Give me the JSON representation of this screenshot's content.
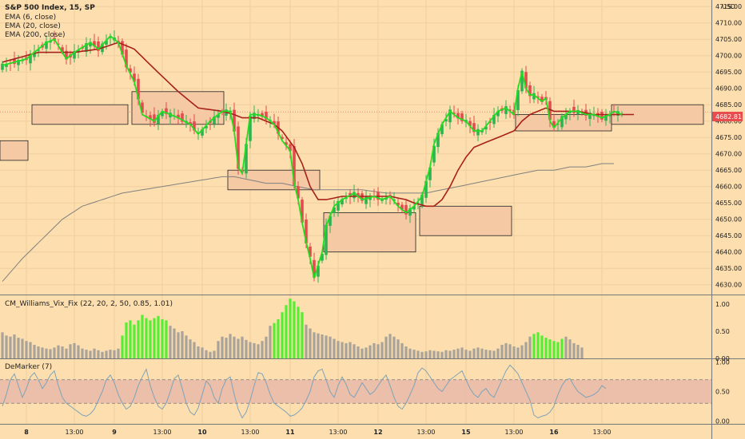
{
  "chart_data": {
    "type": "candlestick",
    "main": {
      "title": "S&P 500 Index, 15, SP",
      "indicators": [
        "EMA (6, close)",
        "EMA (20, close)",
        "EMA (200, close)"
      ],
      "currency": "USD",
      "y_ticks": [
        4630,
        4635,
        4640,
        4645,
        4650,
        4655,
        4660,
        4665,
        4670,
        4675,
        4680,
        4685,
        4690,
        4695,
        4700,
        4705,
        4710,
        4715
      ],
      "y_tick_labels": [
        "4630.00",
        "4635.00",
        "4640.00",
        "4645.00",
        "4650.00",
        "4655.00",
        "4660.00",
        "4665.00",
        "4670.00",
        "4675.00",
        "4680.00",
        "4685.00",
        "4690.00",
        "4695.00",
        "4700.00",
        "4705.00",
        "4710.00",
        "4715.00"
      ],
      "ylim": [
        4627,
        4717
      ],
      "last_price": 4682.81,
      "last_price_label": "4682.81",
      "close_path": [
        [
          0,
          4697
        ],
        [
          6,
          4699
        ],
        [
          11,
          4704
        ],
        [
          13,
          4705
        ],
        [
          16,
          4699
        ],
        [
          18,
          4701
        ],
        [
          22,
          4704
        ],
        [
          24,
          4702
        ],
        [
          27,
          4706
        ],
        [
          29,
          4704
        ],
        [
          31,
          4697
        ],
        [
          33,
          4692
        ],
        [
          35,
          4682
        ],
        [
          38,
          4680
        ],
        [
          40,
          4683
        ],
        [
          44,
          4681
        ],
        [
          47,
          4679
        ],
        [
          49,
          4676
        ],
        [
          52,
          4680
        ],
        [
          55,
          4683
        ],
        [
          57,
          4683
        ],
        [
          58,
          4677
        ],
        [
          59,
          4666
        ],
        [
          60,
          4664
        ],
        [
          62,
          4682
        ],
        [
          64,
          4682
        ],
        [
          66,
          4681
        ],
        [
          68,
          4679
        ],
        [
          70,
          4674
        ],
        [
          72,
          4671
        ],
        [
          73,
          4661
        ],
        [
          74,
          4656
        ],
        [
          75,
          4649
        ],
        [
          76,
          4643
        ],
        [
          77,
          4638
        ],
        [
          78,
          4632
        ],
        [
          79,
          4636
        ],
        [
          80,
          4640
        ],
        [
          81,
          4648
        ],
        [
          83,
          4654
        ],
        [
          85,
          4656
        ],
        [
          88,
          4658
        ],
        [
          90,
          4656
        ],
        [
          93,
          4657
        ],
        [
          95,
          4656
        ],
        [
          97,
          4657
        ],
        [
          99,
          4654
        ],
        [
          101,
          4652
        ],
        [
          103,
          4654
        ],
        [
          105,
          4657
        ],
        [
          107,
          4666
        ],
        [
          108,
          4673
        ],
        [
          110,
          4679
        ],
        [
          112,
          4683
        ],
        [
          114,
          4681
        ],
        [
          116,
          4680
        ],
        [
          118,
          4677
        ],
        [
          120,
          4677
        ],
        [
          122,
          4680
        ],
        [
          124,
          4683
        ],
        [
          126,
          4684
        ],
        [
          128,
          4682
        ],
        [
          129,
          4690
        ],
        [
          130,
          4695
        ],
        [
          131,
          4690
        ],
        [
          132,
          4688
        ],
        [
          133,
          4688
        ],
        [
          135,
          4686
        ],
        [
          136,
          4687
        ],
        [
          137,
          4680
        ],
        [
          138,
          4678
        ],
        [
          140,
          4681
        ],
        [
          142,
          4683
        ],
        [
          144,
          4683
        ],
        [
          146,
          4682
        ],
        [
          148,
          4682
        ],
        [
          150,
          4681
        ],
        [
          152,
          4682
        ],
        [
          153,
          4683
        ],
        [
          155,
          4682
        ]
      ],
      "ema20_path": [
        [
          0,
          4698
        ],
        [
          9,
          4701
        ],
        [
          13,
          4701
        ],
        [
          18,
          4701
        ],
        [
          24,
          4702
        ],
        [
          29,
          4704
        ],
        [
          33,
          4702
        ],
        [
          38,
          4696
        ],
        [
          44,
          4689
        ],
        [
          49,
          4684
        ],
        [
          55,
          4683
        ],
        [
          58,
          4682
        ],
        [
          60,
          4681
        ],
        [
          64,
          4681
        ],
        [
          68,
          4679
        ],
        [
          70,
          4677
        ],
        [
          73,
          4672
        ],
        [
          75,
          4667
        ],
        [
          77,
          4660
        ],
        [
          79,
          4656
        ],
        [
          81,
          4656
        ],
        [
          85,
          4657
        ],
        [
          88,
          4657
        ],
        [
          93,
          4657
        ],
        [
          97,
          4657
        ],
        [
          101,
          4656
        ],
        [
          103,
          4655
        ],
        [
          106,
          4654
        ],
        [
          108,
          4654
        ],
        [
          110,
          4656
        ],
        [
          112,
          4660
        ],
        [
          114,
          4665
        ],
        [
          116,
          4669
        ],
        [
          118,
          4672
        ],
        [
          120,
          4673
        ],
        [
          122,
          4674
        ],
        [
          124,
          4675
        ],
        [
          126,
          4676
        ],
        [
          128,
          4677
        ],
        [
          130,
          4680
        ],
        [
          132,
          4682
        ],
        [
          134,
          4683
        ],
        [
          136,
          4684
        ],
        [
          138,
          4683
        ],
        [
          140,
          4683
        ],
        [
          144,
          4683
        ],
        [
          148,
          4682
        ],
        [
          152,
          4682
        ],
        [
          155,
          4682
        ],
        [
          158,
          4682
        ]
      ],
      "ema200_path": [
        [
          0,
          4631
        ],
        [
          5,
          4638
        ],
        [
          10,
          4644
        ],
        [
          15,
          4650
        ],
        [
          20,
          4654
        ],
        [
          25,
          4656
        ],
        [
          30,
          4658
        ],
        [
          35,
          4659
        ],
        [
          40,
          4660
        ],
        [
          45,
          4661
        ],
        [
          50,
          4662
        ],
        [
          55,
          4663
        ],
        [
          58,
          4663
        ],
        [
          62,
          4662
        ],
        [
          66,
          4661
        ],
        [
          70,
          4661
        ],
        [
          74,
          4660
        ],
        [
          78,
          4659
        ],
        [
          82,
          4659
        ],
        [
          86,
          4659
        ],
        [
          90,
          4659
        ],
        [
          96,
          4658
        ],
        [
          102,
          4658
        ],
        [
          106,
          4658
        ],
        [
          110,
          4659
        ],
        [
          114,
          4660
        ],
        [
          118,
          4661
        ],
        [
          122,
          4662
        ],
        [
          126,
          4663
        ],
        [
          130,
          4664
        ],
        [
          134,
          4665
        ],
        [
          138,
          4665
        ],
        [
          142,
          4666
        ],
        [
          146,
          4666
        ],
        [
          150,
          4667
        ],
        [
          153,
          4667
        ]
      ],
      "boxes": [
        [
          0,
          6,
          4668,
          4674
        ],
        [
          8,
          31,
          4679,
          4685
        ],
        [
          33,
          55,
          4679,
          4689
        ],
        [
          57,
          79,
          4659,
          4665
        ],
        [
          81,
          103,
          4640,
          4652
        ],
        [
          105,
          127,
          4645,
          4654
        ],
        [
          129,
          152,
          4677,
          4682
        ],
        [
          153,
          175,
          4679,
          4685
        ]
      ]
    },
    "cm_williams_vix_fix": {
      "title": "CM_Williams_Vix_Fix (22, 20, 2, 50, 0.85, 1.01)",
      "y_ticks": [
        0.0,
        0.5,
        1.0
      ],
      "y_tick_labels": [
        "0.00",
        "0.50",
        "1.00"
      ],
      "ylim": [
        0,
        1.16
      ],
      "values": [
        0.48,
        0.42,
        0.4,
        0.44,
        0.38,
        0.36,
        0.32,
        0.3,
        0.25,
        0.22,
        0.2,
        0.18,
        0.17,
        0.2,
        0.24,
        0.22,
        0.18,
        0.26,
        0.28,
        0.24,
        0.18,
        0.16,
        0.14,
        0.18,
        0.15,
        0.12,
        0.14,
        0.16,
        0.15,
        0.18,
        0.42,
        0.66,
        0.7,
        0.62,
        0.7,
        0.8,
        0.74,
        0.7,
        0.74,
        0.78,
        0.72,
        0.7,
        0.6,
        0.55,
        0.48,
        0.5,
        0.42,
        0.35,
        0.3,
        0.22,
        0.2,
        0.15,
        0.12,
        0.14,
        0.32,
        0.4,
        0.38,
        0.45,
        0.4,
        0.36,
        0.4,
        0.34,
        0.3,
        0.28,
        0.26,
        0.32,
        0.4,
        0.6,
        0.65,
        0.72,
        0.85,
        0.98,
        1.1,
        1.05,
        0.95,
        0.85,
        0.62,
        0.55,
        0.48,
        0.46,
        0.44,
        0.42,
        0.4,
        0.36,
        0.32,
        0.3,
        0.28,
        0.3,
        0.26,
        0.22,
        0.18,
        0.2,
        0.24,
        0.28,
        0.26,
        0.3,
        0.4,
        0.45,
        0.4,
        0.35,
        0.28,
        0.22,
        0.18,
        0.16,
        0.14,
        0.12,
        0.13,
        0.15,
        0.14,
        0.13,
        0.12,
        0.15,
        0.14,
        0.16,
        0.18,
        0.2,
        0.16,
        0.14,
        0.18,
        0.2,
        0.18,
        0.16,
        0.15,
        0.14,
        0.18,
        0.25,
        0.28,
        0.26,
        0.22,
        0.2,
        0.24,
        0.3,
        0.4,
        0.45,
        0.48,
        0.42,
        0.38,
        0.35,
        0.32,
        0.3,
        0.36,
        0.4,
        0.35,
        0.28,
        0.25,
        0.2
      ],
      "highlighted_indices": [
        30,
        31,
        32,
        33,
        34,
        35,
        36,
        37,
        38,
        39,
        40,
        41,
        68,
        69,
        70,
        71,
        72,
        73,
        74,
        75,
        133,
        134,
        135,
        136,
        137,
        138,
        139,
        140
      ]
    },
    "demarker": {
      "title": "DeMarker (7)",
      "y_ticks": [
        0.0,
        0.5,
        1.0
      ],
      "y_tick_labels": [
        "0.00",
        "0.50",
        "1.00"
      ],
      "ylim": [
        -0.05,
        1.05
      ],
      "band": [
        0.3,
        0.7
      ],
      "values": [
        0.25,
        0.45,
        0.7,
        0.8,
        0.6,
        0.4,
        0.55,
        0.75,
        0.82,
        0.7,
        0.55,
        0.65,
        0.78,
        0.85,
        0.6,
        0.4,
        0.3,
        0.25,
        0.2,
        0.15,
        0.1,
        0.08,
        0.12,
        0.2,
        0.35,
        0.5,
        0.7,
        0.78,
        0.65,
        0.45,
        0.3,
        0.2,
        0.25,
        0.4,
        0.6,
        0.75,
        0.88,
        0.6,
        0.4,
        0.25,
        0.2,
        0.3,
        0.5,
        0.72,
        0.78,
        0.55,
        0.3,
        0.15,
        0.1,
        0.22,
        0.45,
        0.68,
        0.6,
        0.4,
        0.3,
        0.55,
        0.7,
        0.75,
        0.45,
        0.2,
        0.05,
        0.15,
        0.35,
        0.6,
        0.82,
        0.8,
        0.65,
        0.45,
        0.3,
        0.25,
        0.2,
        0.15,
        0.08,
        0.1,
        0.15,
        0.22,
        0.35,
        0.5,
        0.75,
        0.85,
        0.88,
        0.7,
        0.5,
        0.4,
        0.6,
        0.75,
        0.62,
        0.45,
        0.4,
        0.52,
        0.65,
        0.55,
        0.45,
        0.5,
        0.6,
        0.7,
        0.78,
        0.6,
        0.4,
        0.25,
        0.2,
        0.3,
        0.45,
        0.6,
        0.82,
        0.9,
        0.85,
        0.75,
        0.65,
        0.55,
        0.5,
        0.6,
        0.7,
        0.75,
        0.8,
        0.85,
        0.7,
        0.55,
        0.45,
        0.4,
        0.5,
        0.55,
        0.45,
        0.4,
        0.55,
        0.7,
        0.85,
        0.95,
        0.88,
        0.8,
        0.65,
        0.5,
        0.35,
        0.1,
        0.05,
        0.08,
        0.1,
        0.15,
        0.25,
        0.45,
        0.6,
        0.7,
        0.72,
        0.6,
        0.5,
        0.45,
        0.4,
        0.42,
        0.45,
        0.5,
        0.6,
        0.55
      ]
    },
    "x_axis": {
      "labels": [
        "8",
        "13:00",
        "9",
        "13:00",
        "10",
        "13:00",
        "11",
        "13:00",
        "12",
        "13:00",
        "15",
        "13:00",
        "16",
        "13:00"
      ],
      "bold": [
        true,
        false,
        true,
        false,
        true,
        false,
        true,
        false,
        true,
        false,
        true,
        false,
        true,
        false
      ],
      "positions": [
        6,
        18,
        28,
        40,
        50,
        62,
        72,
        84,
        94,
        106,
        116,
        128,
        138,
        150
      ]
    }
  }
}
